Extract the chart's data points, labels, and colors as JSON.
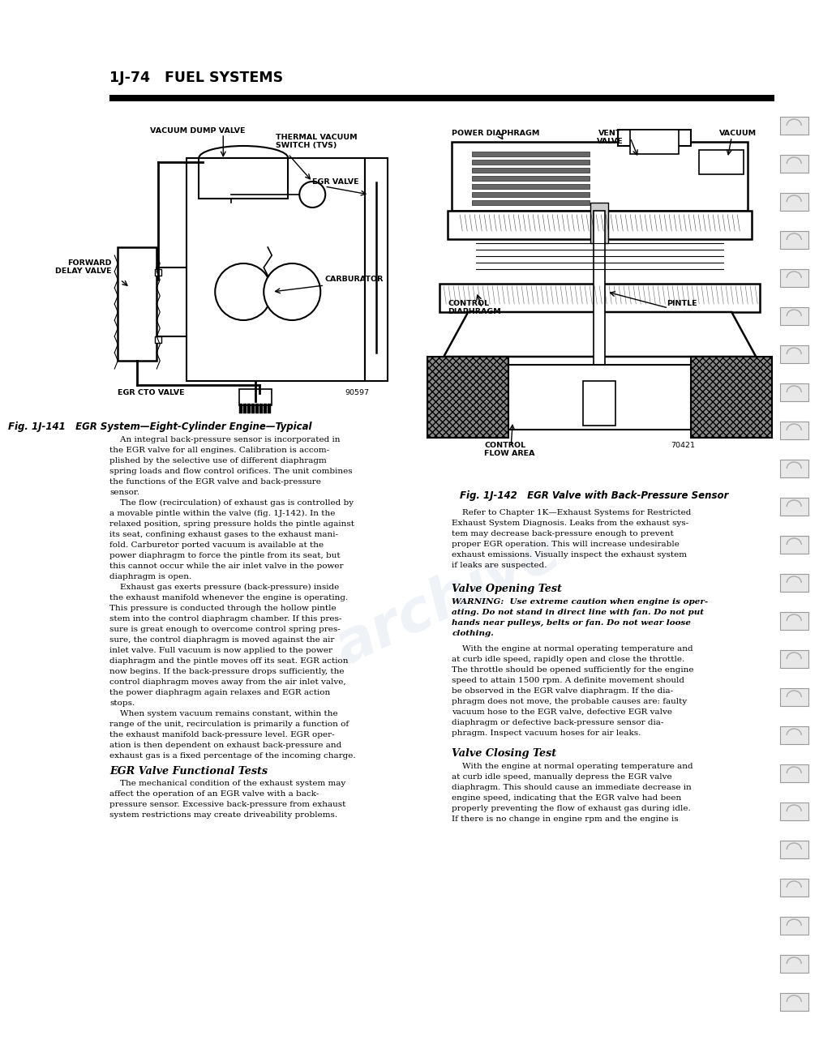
{
  "page_bg": "#ffffff",
  "header_text": "1J-74   FUEL SYSTEMS",
  "fig141_caption": "Fig. 1J-141   EGR System—Eight-Cylinder Engine—Typical",
  "fig142_caption": "Fig. 1J-142   EGR Valve with Back-Pressure Sensor",
  "fig141_num": "90597",
  "fig142_num": "70421",
  "body_text_left": [
    "    An integral back-pressure sensor is incorporated in",
    "the EGR valve for all engines. Calibration is accom-",
    "plished by the selective use of different diaphragm",
    "spring loads and flow control orifices. The unit combines",
    "the functions of the EGR valve and back-pressure",
    "sensor.",
    "    The flow (recirculation) of exhaust gas is controlled by",
    "a movable pintle within the valve (fig. 1J-142). In the",
    "relaxed position, spring pressure holds the pintle against",
    "its seat, confining exhaust gases to the exhaust mani-",
    "fold. Carburetor ported vacuum is available at the",
    "power diaphragm to force the pintle from its seat, but",
    "this cannot occur while the air inlet valve in the power",
    "diaphragm is open.",
    "    Exhaust gas exerts pressure (back-pressure) inside",
    "the exhaust manifold whenever the engine is operating.",
    "This pressure is conducted through the hollow pintle",
    "stem into the control diaphragm chamber. If this pres-",
    "sure is great enough to overcome control spring pres-",
    "sure, the control diaphragm is moved against the air",
    "inlet valve. Full vacuum is now applied to the power",
    "diaphragm and the pintle moves off its seat. EGR action",
    "now begins. If the back-pressure drops sufficiently, the",
    "control diaphragm moves away from the air inlet valve,",
    "the power diaphragm again relaxes and EGR action",
    "stops.",
    "    When system vacuum remains constant, within the",
    "range of the unit, recirculation is primarily a function of",
    "the exhaust manifold back-pressure level. EGR oper-",
    "ation is then dependent on exhaust back-pressure and",
    "exhaust gas is a fixed percentage of the incoming charge."
  ],
  "egr_header": "EGR Valve Functional Tests",
  "egr_text": [
    "    The mechanical condition of the exhaust system may",
    "affect the operation of an EGR valve with a back-",
    "pressure sensor. Excessive back-pressure from exhaust",
    "system restrictions may create driveability problems."
  ],
  "body_text_right_intro": [
    "    Refer to Chapter 1K—Exhaust Systems for Restricted",
    "Exhaust System Diagnosis. Leaks from the exhaust sys-",
    "tem may decrease back-pressure enough to prevent",
    "proper EGR operation. This will increase undesirable",
    "exhaust emissions. Visually inspect the exhaust system",
    "if leaks are suspected."
  ],
  "valve_opening_header": "Valve Opening Test",
  "warning_label": "WARNING: ",
  "warning_italic": " Use extreme caution when engine is oper-\nating. Do not stand in direct line with fan. Do not put\nhands near pulleys, belts or fan. Do not wear loose\nclothing.",
  "valve_opening_body": [
    "    With the engine at normal operating temperature and",
    "at curb idle speed, rapidly open and close the throttle.",
    "The throttle should be opened sufficiently for the engine",
    "speed to attain 1500 rpm. A definite movement should",
    "be observed in the EGR valve diaphragm. If the dia-",
    "phragm does not move, the probable causes are: faulty",
    "vacuum hose to the EGR valve, defective EGR valve",
    "diaphragm or defective back-pressure sensor dia-",
    "phragm. Inspect vacuum hoses for air leaks."
  ],
  "valve_closing_header": "Valve Closing Test",
  "valve_closing_body": [
    "    With the engine at normal operating temperature and",
    "at curb idle speed, manually depress the EGR valve",
    "diaphragm. This should cause an immediate decrease in",
    "engine speed, indicating that the EGR valve had been",
    "properly preventing the flow of exhaust gas during idle.",
    "If there is no change in engine rpm and the engine is"
  ]
}
